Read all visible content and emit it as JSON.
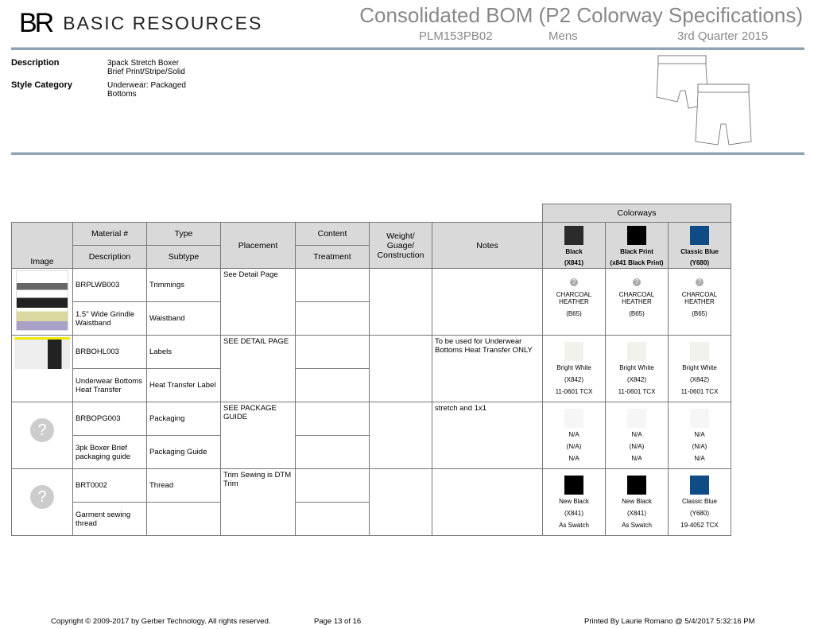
{
  "header": {
    "logo_mark": "BR",
    "brand": "BASIC RESOURCES",
    "title": "Consolidated BOM (P2 Colorway Specifications)",
    "style_no": "PLM153PB02",
    "division": "Mens",
    "season": "3rd Quarter 2015"
  },
  "info": {
    "description_label": "Description",
    "description_value": "3pack Stretch Boxer Brief Print/Stripe/Solid",
    "category_label": "Style Category",
    "category_value": "Underwear: Packaged Bottoms"
  },
  "table": {
    "colorways_label": "Colorways",
    "headers": {
      "image": "Image",
      "material": "Material #",
      "description": "Description",
      "type": "Type",
      "subtype": "Subtype",
      "placement": "Placement",
      "content": "Content",
      "treatment": "Treatment",
      "weight": "Weight/ Guage/ Construction",
      "notes": "Notes"
    },
    "colorways": [
      {
        "name": "Black",
        "code": "(X841)",
        "color": "#2b2b2b"
      },
      {
        "name": "Black Print",
        "code": "(x841 Black Print)",
        "color": "#000000"
      },
      {
        "name": "Classic Blue",
        "code": "(Y680)",
        "color": "#0f4c85"
      }
    ],
    "rows": [
      {
        "material": "BRPLWB003",
        "description": "1.5\" Wide Grindle Waistband",
        "type": "Trimmings",
        "subtype": "Waistband",
        "placement": "See Detail Page",
        "notes": "",
        "cells": [
          {
            "l1": "CHARCOAL HEATHER",
            "l2": "(B65)",
            "l3": ""
          },
          {
            "l1": "CHARCOAL HEATHER",
            "l2": "(B65)",
            "l3": ""
          },
          {
            "l1": "CHARCOAL HEATHER",
            "l2": "(B65)",
            "l3": ""
          }
        ]
      },
      {
        "material": "BRBOHL003",
        "description": "Underwear Bottoms Heat Transfer",
        "type": "Labels",
        "subtype": "Heat Transfer Label",
        "placement": "SEE DETAIL PAGE",
        "notes": "To be used for Underwear Bottoms Heat Transfer ONLY",
        "cells": [
          {
            "l1": "Bright White",
            "l2": "(X842)",
            "l3": "11-0601 TCX",
            "color": "#f2f2ec"
          },
          {
            "l1": "Bright White",
            "l2": "(X842)",
            "l3": "11-0601 TCX",
            "color": "#f2f2ec"
          },
          {
            "l1": "Bright White",
            "l2": "(X842)",
            "l3": "11-0601 TCX",
            "color": "#f2f2ec"
          }
        ]
      },
      {
        "material": "BRBOPG003",
        "description": "3pk Boxer Brief packaging guide",
        "type": "Packaging",
        "subtype": "Packaging Guide",
        "placement": "SEE PACKAGE GUIDE",
        "notes": "stretch and 1x1",
        "cells": [
          {
            "l1": "N/A",
            "l2": "(N/A)",
            "l3": "N/A",
            "color": "#f6f6f6"
          },
          {
            "l1": "N/A",
            "l2": "(N/A)",
            "l3": "N/A",
            "color": "#f6f6f6"
          },
          {
            "l1": "N/A",
            "l2": "(N/A)",
            "l3": "N/A",
            "color": "#f6f6f6"
          }
        ]
      },
      {
        "material": "BRT0002",
        "description": "Garment sewing thread",
        "type": "Thread",
        "subtype": "",
        "placement": "Trim Sewing is DTM Trim",
        "notes": "",
        "cells": [
          {
            "l1": "New Black",
            "l2": "(X841)",
            "l3": "As Swatch",
            "color": "#000000"
          },
          {
            "l1": "New Black",
            "l2": "(X841)",
            "l3": "As Swatch",
            "color": "#000000"
          },
          {
            "l1": "Classic Blue",
            "l2": "(Y680)",
            "l3": "19-4052 TCX",
            "color": "#0f4c85"
          }
        ]
      }
    ]
  },
  "footer": {
    "copyright": "Copyright © 2009-2017 by Gerber Technology. All rights reserved.",
    "page": "Page 13 of 16",
    "printed": "Printed By Laurie Romano @ 5/4/2017 5:32:16 PM"
  }
}
